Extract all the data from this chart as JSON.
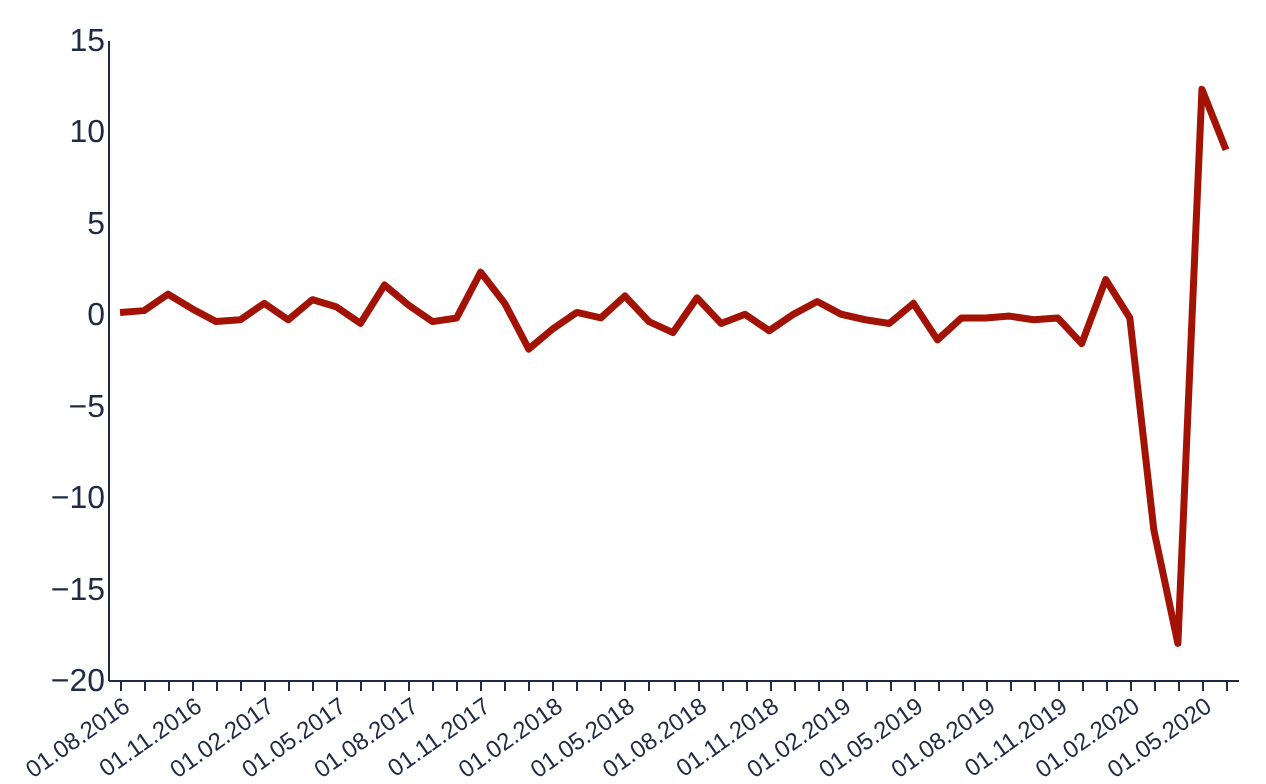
{
  "chart_data": {
    "type": "line",
    "categories": [
      "01.08.2016",
      null,
      null,
      "01.11.2016",
      null,
      null,
      "01.02.2017",
      null,
      null,
      "01.05.2017",
      null,
      null,
      "01.08.2017",
      null,
      null,
      "01.11.2017",
      null,
      null,
      "01.02.2018",
      null,
      null,
      "01.05.2018",
      null,
      null,
      "01.08.2018",
      null,
      null,
      "01.11.2018",
      null,
      null,
      "01.02.2019",
      null,
      null,
      "01.05.2019",
      null,
      null,
      "01.08.2019",
      null,
      null,
      "01.11.2019",
      null,
      null,
      "01.02.2020",
      null,
      null,
      "01.05.2020",
      null
    ],
    "series": [
      {
        "color": "#a31305",
        "values": [
          0.1,
          0.2,
          1.1,
          0.3,
          -0.4,
          -0.3,
          0.6,
          -0.3,
          0.8,
          0.4,
          -0.5,
          1.6,
          0.5,
          -0.4,
          -0.2,
          2.3,
          0.6,
          -1.9,
          -0.8,
          0.1,
          -0.2,
          1.0,
          -0.4,
          -1.0,
          0.9,
          -0.5,
          0.0,
          -0.9,
          0.0,
          0.7,
          0.0,
          -0.3,
          -0.5,
          0.6,
          -1.4,
          -0.2,
          -0.2,
          -0.1,
          -0.3,
          -0.2,
          -1.6,
          1.9,
          -0.2,
          -11.8,
          -18.0,
          12.3,
          9.0
        ]
      }
    ],
    "ylim": [
      -20,
      15
    ],
    "yticks": [
      -20,
      -15,
      -10,
      -5,
      0,
      5,
      10,
      15
    ],
    "grid": false,
    "marker": "none",
    "line_style": "solid"
  }
}
